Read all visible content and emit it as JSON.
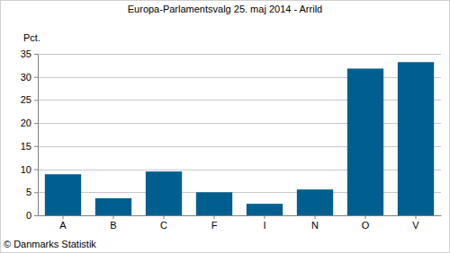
{
  "chart_data": {
    "type": "bar",
    "title": "Europa-Parlamentsvalg 25. maj 2014 - Arrild",
    "y_label": "Pct.",
    "source": "© Danmarks Statistik",
    "categories": [
      "A",
      "B",
      "C",
      "F",
      "I",
      "N",
      "O",
      "V"
    ],
    "values": [
      8.9,
      3.7,
      9.5,
      5.0,
      2.5,
      5.6,
      31.8,
      33.2
    ],
    "color": "#005f8f",
    "ylim": [
      0,
      35
    ],
    "yticks": [
      0,
      5,
      10,
      15,
      20,
      25,
      30,
      35
    ],
    "grid": true
  }
}
